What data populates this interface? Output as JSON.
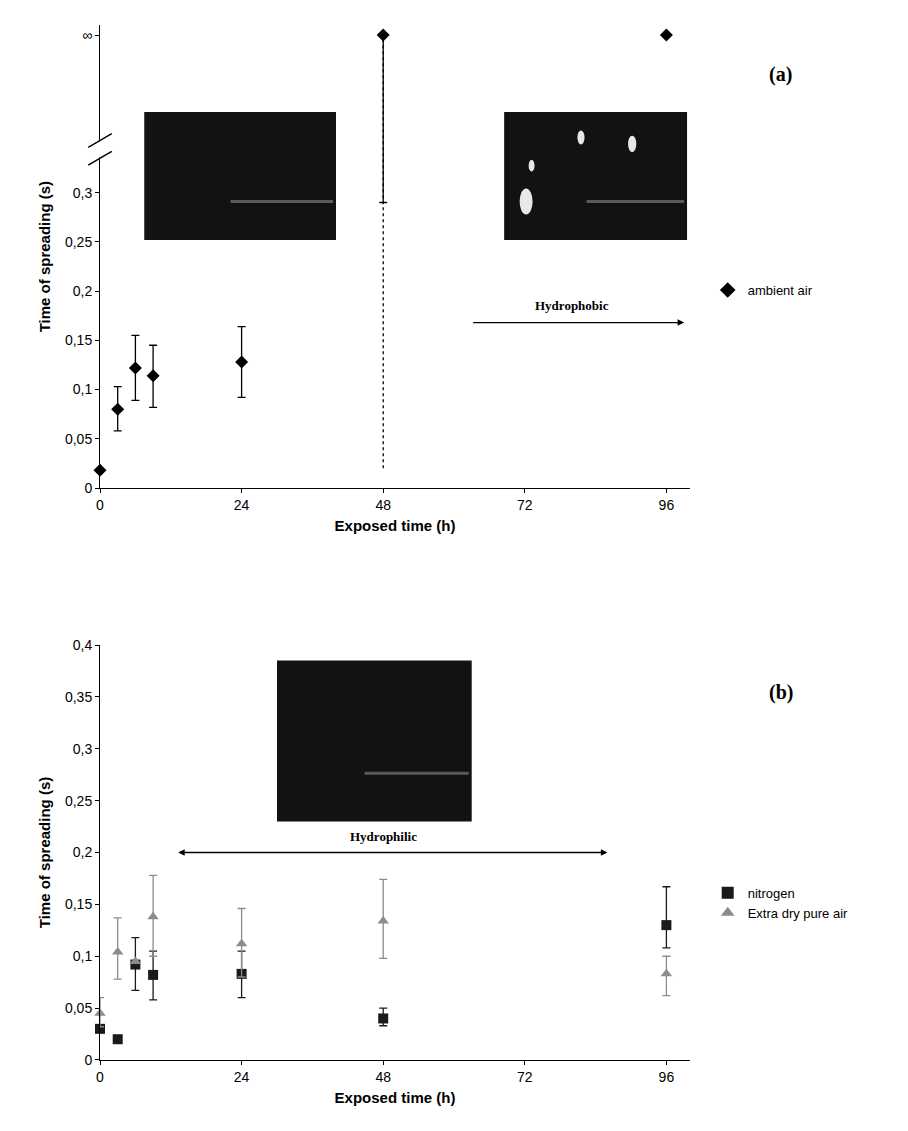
{
  "chart_data": [
    {
      "type": "scatter",
      "panel": "(a)",
      "xlabel": "Exposed time (h)",
      "ylabel": "Time of spreading (s)",
      "xlim": [
        0,
        100
      ],
      "xticks": [
        0,
        24,
        48,
        72,
        96
      ],
      "ylim": [
        0,
        0.47
      ],
      "yticks": [
        0,
        {
          "value": 0.05,
          "label": "0,05"
        },
        {
          "value": 0.1,
          "label": "0,1"
        },
        {
          "value": 0.15,
          "label": "0,15"
        },
        {
          "value": 0.2,
          "label": "0,2"
        },
        {
          "value": 0.25,
          "label": "0,25"
        },
        {
          "value": 0.3,
          "label": "0,3"
        },
        {
          "value": 0.46,
          "label": "∞"
        }
      ],
      "grid": false,
      "legend": "right",
      "annotations": [
        "Hydrophobic"
      ],
      "reference_line": {
        "x": 48,
        "from": 0.02,
        "to": "∞",
        "line_style": "dotted"
      },
      "series": [
        {
          "name": "ambient air",
          "color": "#000000",
          "marker": "diamond",
          "x": [
            0,
            3,
            6,
            9,
            24,
            48,
            96
          ],
          "values": [
            0.018,
            0.08,
            0.122,
            0.114,
            0.128,
            "∞",
            "∞"
          ],
          "err_low": [
            null,
            0.058,
            0.089,
            0.082,
            0.092,
            0.29,
            null
          ],
          "err_high": [
            null,
            0.103,
            0.155,
            0.145,
            0.164,
            null,
            null
          ]
        }
      ]
    },
    {
      "type": "scatter",
      "panel": "(b)",
      "xlabel": "Exposed time (h)",
      "ylabel": "Time of spreading (s)",
      "xlim": [
        0,
        100
      ],
      "xticks": [
        0,
        24,
        48,
        72,
        96
      ],
      "ylim": [
        0,
        0.4
      ],
      "yticks": [
        0,
        {
          "value": 0.05,
          "label": "0,05"
        },
        {
          "value": 0.1,
          "label": "0,1"
        },
        {
          "value": 0.15,
          "label": "0,15"
        },
        {
          "value": 0.2,
          "label": "0,2"
        },
        {
          "value": 0.25,
          "label": "0,25"
        },
        {
          "value": 0.3,
          "label": "0,3"
        },
        {
          "value": 0.35,
          "label": "0,35"
        },
        {
          "value": 0.4,
          "label": "0,4"
        }
      ],
      "grid": false,
      "legend": "right",
      "annotations": [
        "Hydrophilic"
      ],
      "series": [
        {
          "name": "nitrogen",
          "color": "#1a1a1a",
          "marker": "square",
          "x": [
            0,
            3,
            6,
            9,
            24,
            48,
            96
          ],
          "values": [
            0.03,
            0.02,
            0.092,
            0.082,
            0.083,
            0.04,
            0.13
          ],
          "err_low": [
            null,
            null,
            0.067,
            0.058,
            0.06,
            0.033,
            0.108
          ],
          "err_high": [
            null,
            null,
            0.118,
            0.105,
            0.105,
            0.05,
            0.167
          ]
        },
        {
          "name": "Extra dry pure air",
          "color": "#8c8c8c",
          "marker": "triangle",
          "x": [
            0,
            3,
            6,
            9,
            24,
            48,
            96
          ],
          "values": [
            0.045,
            0.104,
            0.095,
            0.138,
            0.112,
            0.134,
            0.083
          ],
          "err_low": [
            0.032,
            0.078,
            null,
            0.1,
            0.08,
            0.098,
            0.062
          ],
          "err_high": [
            0.06,
            0.137,
            null,
            0.178,
            0.146,
            0.174,
            0.1
          ]
        }
      ]
    }
  ]
}
